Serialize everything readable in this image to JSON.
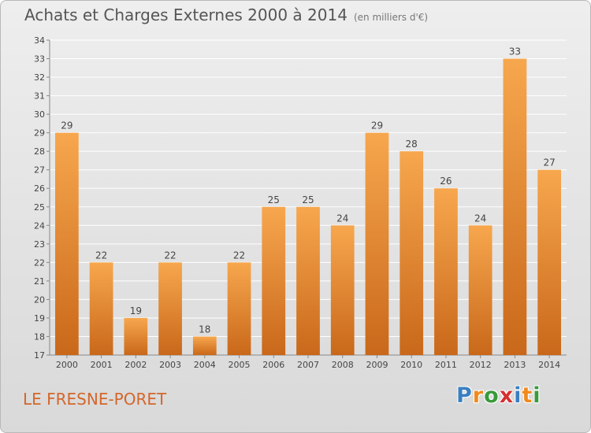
{
  "header": {
    "title": "Achats et Charges Externes 2000 à 2014",
    "subtitle": "(en milliers d'€)"
  },
  "footer": {
    "commune": "LE FRESNE-PORET",
    "logo_letters": [
      "P",
      "r",
      "o",
      "x",
      "i",
      "t",
      "i"
    ],
    "logo_colors": [
      "#3a7fc1",
      "#f08a1c",
      "#3a9a3a",
      "#d63030",
      "#3a7fc1",
      "#f08a1c",
      "#3a9a3a"
    ]
  },
  "colors": {
    "bar_light": "#f7a74e",
    "bar_dark": "#c9681a",
    "grid": "#ffffff",
    "axis": "#888888"
  },
  "chart_data": {
    "type": "bar",
    "title": "Achats et Charges Externes 2000 à 2014",
    "subtitle": "(en milliers d'€)",
    "categories": [
      "2000",
      "2001",
      "2002",
      "2003",
      "2004",
      "2005",
      "2006",
      "2007",
      "2008",
      "2009",
      "2010",
      "2011",
      "2012",
      "2013",
      "2014"
    ],
    "values": [
      29,
      22,
      19,
      22,
      18,
      22,
      25,
      25,
      24,
      29,
      28,
      26,
      24,
      33,
      27
    ],
    "ylim": [
      17,
      34
    ],
    "yticks": [
      17,
      18,
      19,
      20,
      21,
      22,
      23,
      24,
      25,
      26,
      27,
      28,
      29,
      30,
      31,
      32,
      33,
      34
    ],
    "grid": true,
    "xlabel": "",
    "ylabel": ""
  }
}
